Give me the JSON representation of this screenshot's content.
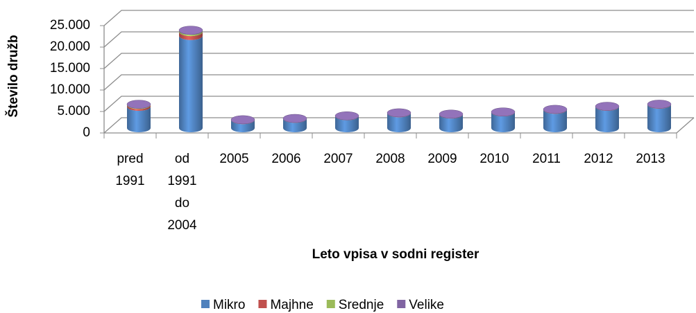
{
  "chart_data": {
    "type": "bar",
    "stacked": true,
    "x_label": "Leto vpisa v sodni register",
    "y_label": "Število družb",
    "categories": [
      "pred 1991",
      "od 1991 do 2004",
      "2005",
      "2006",
      "2007",
      "2008",
      "2009",
      "2010",
      "2011",
      "2012",
      "2013"
    ],
    "series": [
      {
        "name": "Mikro",
        "color": "#4f81bd",
        "values": [
          5000,
          21500,
          1900,
          2200,
          2800,
          3500,
          3200,
          3700,
          4300,
          5000,
          5500
        ]
      },
      {
        "name": "Majhne",
        "color": "#c0504d",
        "values": [
          400,
          900,
          40,
          40,
          50,
          50,
          50,
          50,
          60,
          60,
          60
        ]
      },
      {
        "name": "Srednje",
        "color": "#9bbb59",
        "values": [
          100,
          300,
          10,
          10,
          10,
          10,
          10,
          10,
          10,
          10,
          10
        ]
      },
      {
        "name": "Velike",
        "color": "#8064a2",
        "values": [
          50,
          100,
          2,
          2,
          2,
          2,
          2,
          2,
          2,
          2,
          2
        ]
      }
    ],
    "ylim": [
      0,
      25000
    ],
    "yticks": [
      0,
      {
        "value": 5000,
        "label": "5.000"
      },
      {
        "value": 10000,
        "label": "10.000"
      },
      {
        "value": 15000,
        "label": "15.000"
      },
      {
        "value": 20000,
        "label": "20.000"
      },
      {
        "value": 25000,
        "label": "25.000"
      }
    ],
    "grid": true,
    "legend": "bottom"
  }
}
